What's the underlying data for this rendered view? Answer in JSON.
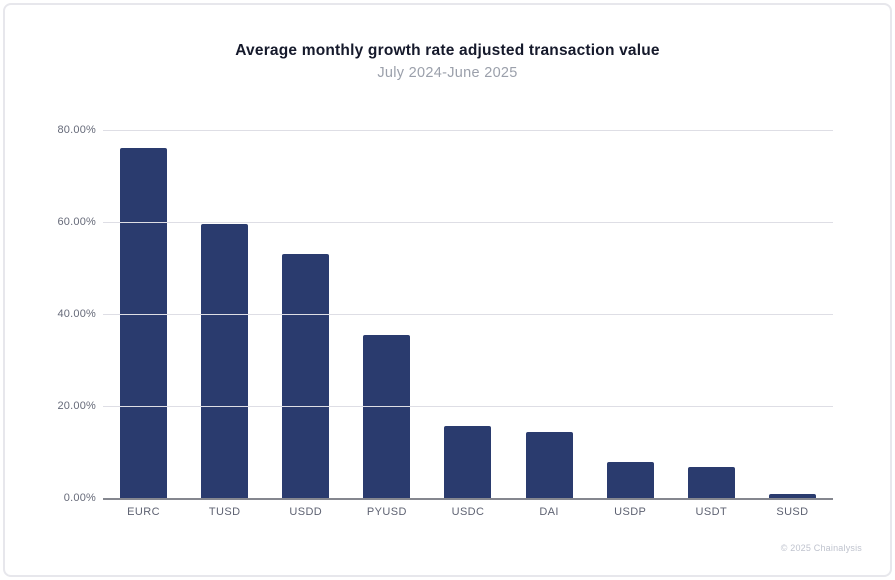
{
  "header": {
    "title": "Average monthly growth rate adjusted transaction value",
    "subtitle": "July 2024-June 2025"
  },
  "footer": {
    "credit": "© 2025 Chainalysis"
  },
  "colors": {
    "bar": "#2a3b6e",
    "grid": "#dedee5",
    "axis": "#85878f",
    "title_text": "#15192b",
    "subtitle_text": "#9ba0ab",
    "tick_text": "#666a79",
    "footer_text": "#bfc3ce"
  },
  "chart_data": {
    "type": "bar",
    "title": "Average monthly growth rate adjusted transaction value",
    "subtitle": "July 2024-June 2025",
    "categories": [
      "EURC",
      "TUSD",
      "USDD",
      "PYUSD",
      "USDC",
      "DAI",
      "USDP",
      "USDT",
      "SUSD"
    ],
    "values": [
      76.1,
      59.6,
      53.1,
      35.5,
      15.6,
      14.4,
      7.8,
      6.8,
      0.9
    ],
    "xlabel": "",
    "ylabel": "",
    "ylim": [
      0,
      80
    ],
    "y_ticks": [
      {
        "value": 80,
        "label": "80.00%"
      },
      {
        "value": 60,
        "label": "60.00%"
      },
      {
        "value": 40,
        "label": "40.00%"
      },
      {
        "value": 20,
        "label": "20.00%"
      },
      {
        "value": 0,
        "label": "0.00%"
      }
    ],
    "grid": true,
    "legend_position": "none"
  }
}
